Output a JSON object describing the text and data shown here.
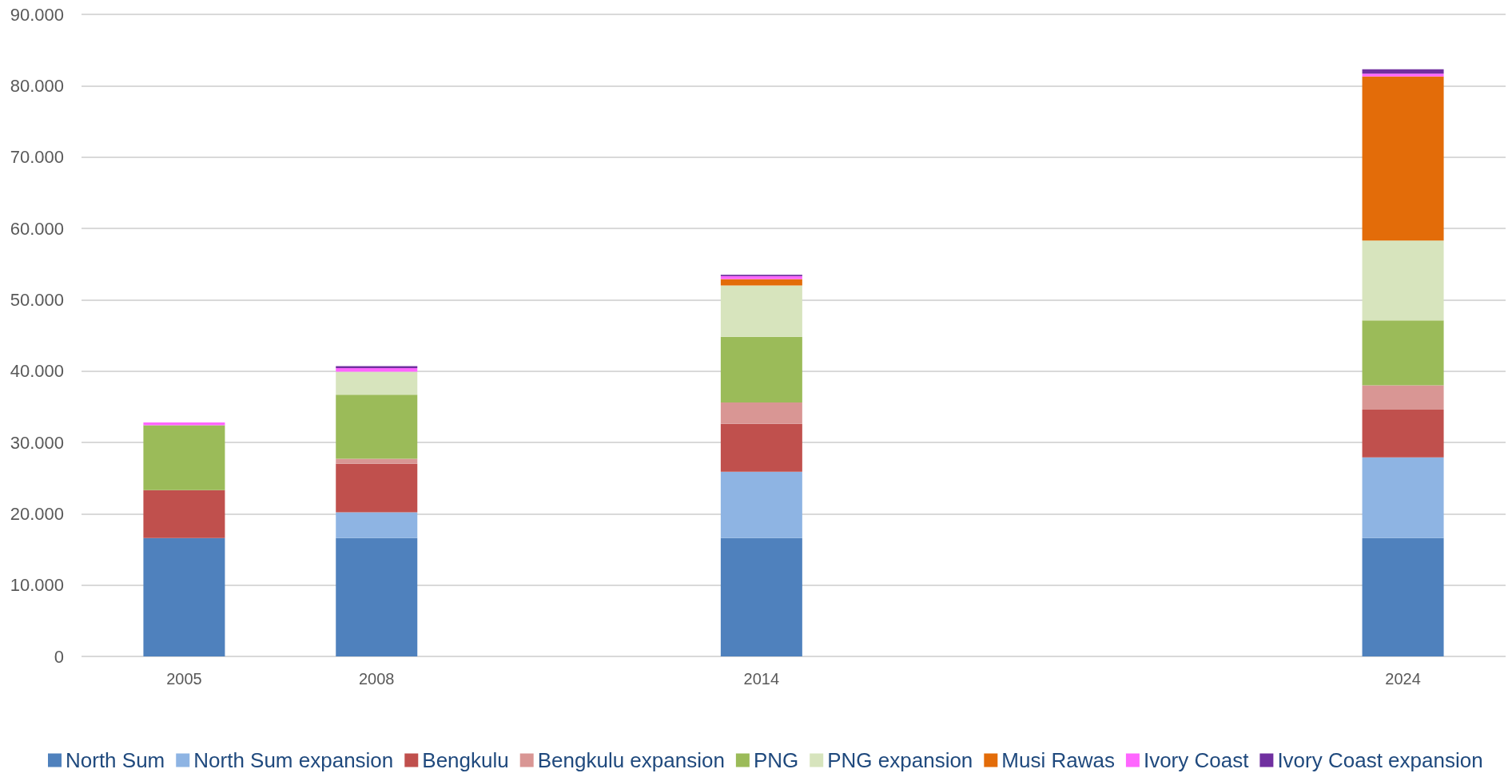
{
  "chart_data": {
    "type": "bar",
    "stacked": true,
    "x": [
      2005,
      2008,
      2014,
      2024
    ],
    "xlim": [
      2003.4,
      2025.6
    ],
    "xticks": [
      2005,
      2008,
      2014,
      2024
    ],
    "ylim": [
      0,
      90000
    ],
    "yticks": [
      0,
      {
        "value": 10000,
        "label": "10.000"
      },
      {
        "value": 20000,
        "label": "20.000"
      },
      {
        "value": 30000,
        "label": "30.000"
      },
      {
        "value": 40000,
        "label": "40.000"
      },
      {
        "value": 50000,
        "label": "50.000"
      },
      {
        "value": 60000,
        "label": "60.000"
      },
      {
        "value": 70000,
        "label": "70.000"
      },
      {
        "value": 80000,
        "label": "80.000"
      },
      {
        "value": 90000,
        "label": "90.000"
      }
    ],
    "grid": "y",
    "legend": "bottom",
    "series": [
      {
        "name": "North Sum",
        "color": "#4f81bd",
        "values": [
          16600,
          16600,
          16600,
          16600
        ]
      },
      {
        "name": "North Sum expansion",
        "color": "#8eb4e3",
        "values": [
          null,
          3600,
          9300,
          11300
        ]
      },
      {
        "name": "Bengkulu",
        "color": "#c0504d",
        "values": [
          6700,
          6800,
          6700,
          6700
        ]
      },
      {
        "name": "Bengkulu expansion",
        "color": "#d99694",
        "values": [
          null,
          700,
          3000,
          3400
        ]
      },
      {
        "name": "PNG",
        "color": "#9bbb59",
        "values": [
          9100,
          9000,
          9200,
          9100
        ]
      },
      {
        "name": "PNG expansion",
        "color": "#d7e4bd",
        "values": [
          null,
          3200,
          7200,
          11200
        ]
      },
      {
        "name": "Musi Rawas",
        "color": "#e36c09",
        "values": [
          null,
          null,
          900,
          23000
        ]
      },
      {
        "name": "Ivory Coast",
        "color": "#ff66ff",
        "values": [
          400,
          500,
          400,
          400
        ]
      },
      {
        "name": "Ivory Coast expansion",
        "color": "#7030a0",
        "values": [
          null,
          300,
          200,
          600
        ]
      }
    ]
  }
}
